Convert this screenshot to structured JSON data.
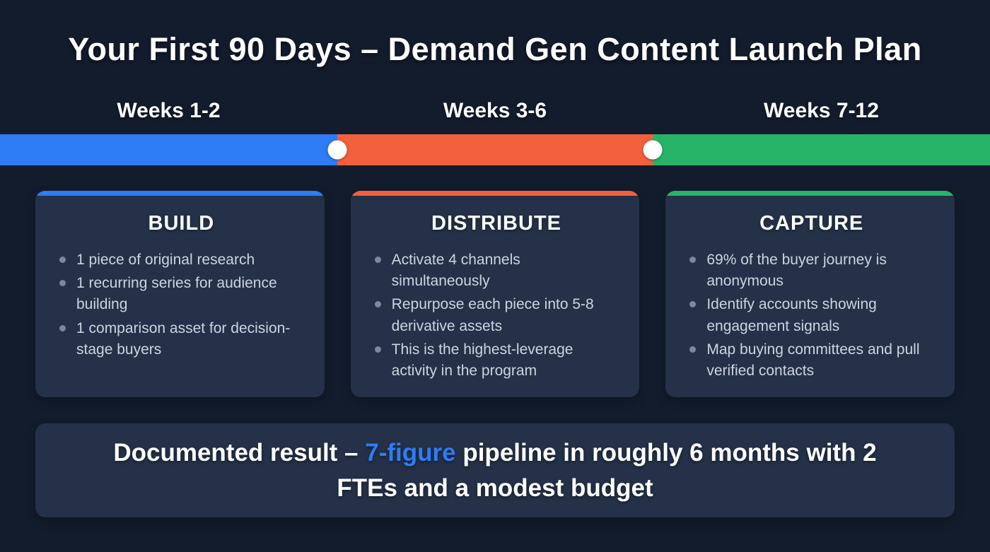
{
  "title": "Your First 90 Days – Demand Gen Content Launch Plan",
  "colors": {
    "blue": "#2E7CF6",
    "orange": "#F2603D",
    "green": "#27B468",
    "background": "#131C2D",
    "card": "#243148"
  },
  "timeline": {
    "phases": [
      {
        "label": "Weeks 1-2",
        "color": "blue"
      },
      {
        "label": "Weeks 3-6",
        "color": "orange"
      },
      {
        "label": "Weeks 7-12",
        "color": "green"
      }
    ]
  },
  "cards": [
    {
      "title": "BUILD",
      "accent": "blue",
      "bullets": [
        "1 piece of original research",
        "1 recurring series for audience building",
        "1 comparison asset for decision-stage buyers"
      ]
    },
    {
      "title": "DISTRIBUTE",
      "accent": "orange",
      "bullets": [
        "Activate 4 channels simultaneously",
        "Repurpose each piece into 5-8 derivative assets",
        "This is the highest-leverage activity in the program"
      ]
    },
    {
      "title": "CAPTURE",
      "accent": "green",
      "bullets": [
        "69% of the buyer journey is anonymous",
        "Identify accounts showing engagement signals",
        "Map buying committees and pull verified contacts"
      ]
    }
  ],
  "banner": {
    "prefix": "Documented result – ",
    "highlight": "7-figure",
    "suffix": " pipeline in roughly 6 months with 2 FTEs and a modest budget"
  }
}
